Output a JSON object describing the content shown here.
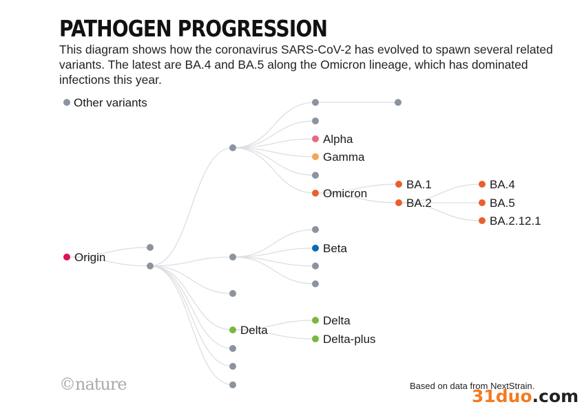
{
  "title": "PATHOGEN PROGRESSION",
  "description": "This diagram shows how the coronavirus SARS-CoV-2 has evolved to spawn several related variants. The latest are BA.4 and BA.5 along the Omicron lineage, which has dominated infections this year.",
  "legend": {
    "label": "Other variants",
    "color": "#8b939e"
  },
  "edge_color": "#dcdee2",
  "nodes": [
    {
      "id": "origin",
      "label": "Origin",
      "color": "#e0105f"
    },
    {
      "id": "n1",
      "parent": "origin",
      "label": "",
      "color": "#8b939e"
    },
    {
      "id": "n2",
      "parent": "origin",
      "label": "",
      "color": "#8b939e"
    },
    {
      "id": "a",
      "parent": "n2",
      "label": "",
      "color": "#8b939e"
    },
    {
      "id": "b",
      "parent": "n2",
      "label": "",
      "color": "#8b939e"
    },
    {
      "id": "c",
      "parent": "n2",
      "label": "",
      "color": "#8b939e"
    },
    {
      "id": "delta0",
      "parent": "n2",
      "label": "Delta",
      "color": "#7ab640"
    },
    {
      "id": "e",
      "parent": "n2",
      "label": "",
      "color": "#8b939e"
    },
    {
      "id": "f",
      "parent": "n2",
      "label": "",
      "color": "#8b939e"
    },
    {
      "id": "g",
      "parent": "n2",
      "label": "",
      "color": "#8b939e"
    },
    {
      "id": "a1",
      "parent": "a",
      "label": "",
      "color": "#8b939e"
    },
    {
      "id": "a1x",
      "parent": "a1",
      "label": "",
      "color": "#8b939e"
    },
    {
      "id": "a2",
      "parent": "a",
      "label": "",
      "color": "#8b939e"
    },
    {
      "id": "alpha",
      "parent": "a",
      "label": "Alpha",
      "color": "#e8697f"
    },
    {
      "id": "gamma",
      "parent": "a",
      "label": "Gamma",
      "color": "#f2a755"
    },
    {
      "id": "a5",
      "parent": "a",
      "label": "",
      "color": "#8b939e"
    },
    {
      "id": "omicron",
      "parent": "a",
      "label": "Omicron",
      "color": "#e8612c"
    },
    {
      "id": "ba1",
      "parent": "omicron",
      "label": "BA.1",
      "color": "#e8612c"
    },
    {
      "id": "ba2",
      "parent": "omicron",
      "label": "BA.2",
      "color": "#e8612c"
    },
    {
      "id": "ba4",
      "parent": "ba2",
      "label": "BA.4",
      "color": "#e8612c"
    },
    {
      "id": "ba5",
      "parent": "ba2",
      "label": "BA.5",
      "color": "#e8612c"
    },
    {
      "id": "ba2121",
      "parent": "ba2",
      "label": "BA.2.12.1",
      "color": "#e8612c"
    },
    {
      "id": "b1",
      "parent": "b",
      "label": "",
      "color": "#8b939e"
    },
    {
      "id": "beta",
      "parent": "b",
      "label": "Beta",
      "color": "#0b6ab5"
    },
    {
      "id": "b3",
      "parent": "b",
      "label": "",
      "color": "#8b939e"
    },
    {
      "id": "b4",
      "parent": "b",
      "label": "",
      "color": "#8b939e"
    },
    {
      "id": "delta",
      "parent": "delta0",
      "label": "Delta",
      "color": "#7ab640"
    },
    {
      "id": "deltaplus",
      "parent": "delta0",
      "label": "Delta-plus",
      "color": "#7ab640"
    }
  ],
  "logo": "©nature",
  "source": "Based on data from NextStrain.",
  "watermark": {
    "part1": "31duo",
    "part2": ".com"
  }
}
